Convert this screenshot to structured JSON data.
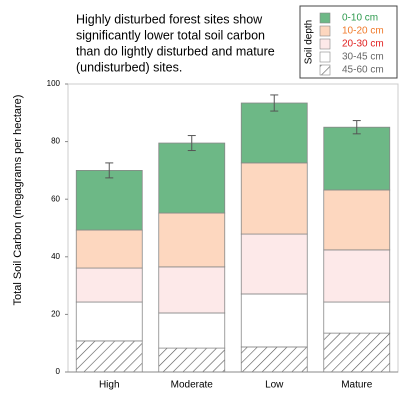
{
  "chart_data": {
    "type": "bar",
    "stacked": true,
    "annotation": [
      "Highly disturbed forest sites show",
      "significantly lower total soil carbon",
      "than do lightly disturbed and mature",
      "(undisturbed) sites."
    ],
    "y_label": "Total Soil Carbon (megagrams per hectare)",
    "legend_title": "Soil depth",
    "legend_position": "upper right",
    "categories": [
      "High",
      "Moderate",
      "Low",
      "Mature"
    ],
    "series": [
      {
        "name": "45-60 cm",
        "color": "#ffffff",
        "text_color": "#666666",
        "hatch": true,
        "values": [
          10.8,
          8.3,
          8.7,
          13.5
        ]
      },
      {
        "name": "30-45 cm",
        "color": "#ffffff",
        "text_color": "#666666",
        "values": [
          13.5,
          12.2,
          18.4,
          10.8
        ]
      },
      {
        "name": "20-30 cm",
        "color": "#fde9e9",
        "text_color": "#e02020",
        "values": [
          11.8,
          16,
          20.8,
          18.1
        ]
      },
      {
        "name": "10-20 cm",
        "color": "#fdd7bf",
        "text_color": "#f07a2a",
        "values": [
          13.2,
          18.7,
          24.7,
          20.8
        ]
      },
      {
        "name": "0-10 cm",
        "color": "#6db886",
        "text_color": "#2e9a4e",
        "values": [
          20.7,
          24.3,
          20.8,
          21.8
        ],
        "errors": [
          2.6,
          2.6,
          2.8,
          2.3
        ]
      }
    ],
    "ylim": [
      0,
      100
    ],
    "yticks": [
      0,
      20,
      40,
      60,
      80,
      100
    ]
  }
}
